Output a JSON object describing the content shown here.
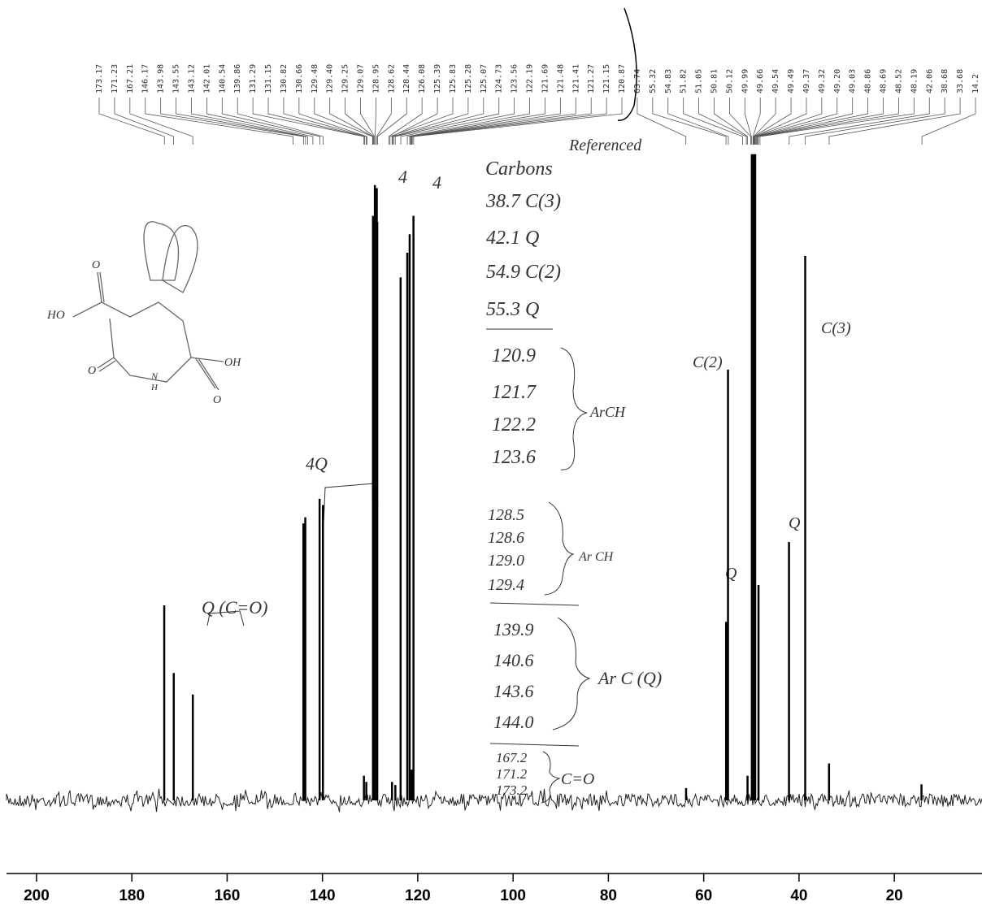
{
  "chart_data": {
    "type": "spectrum",
    "color": "#000000",
    "xlim": [
      206.3,
      1.6
    ],
    "ylim": [
      0,
      110
    ],
    "xticks": [
      200,
      180,
      160,
      140,
      120,
      100,
      80,
      60,
      40,
      20
    ],
    "x": [
      173.2,
      171.2,
      167.2,
      144.0,
      143.6,
      140.6,
      139.9,
      131.3,
      130.8,
      129.4,
      129.0,
      128.6,
      128.5,
      125.4,
      124.7,
      123.6,
      122.2,
      121.7,
      121.3,
      120.9,
      63.7,
      55.3,
      54.9,
      50.8,
      49.9,
      49.7,
      49.5,
      49.4,
      49.2,
      48.5,
      42.1,
      38.7,
      33.7,
      14.3
    ],
    "values": [
      31.7,
      20.7,
      17.2,
      45,
      46,
      49,
      48,
      4,
      3,
      95,
      100,
      99.5,
      94,
      3,
      2.5,
      85,
      89,
      92,
      5,
      95,
      2,
      29,
      70,
      4,
      105,
      105,
      105,
      105,
      105,
      35,
      42,
      88.5,
      6,
      2.6
    ],
    "peak_labels": [
      "173.17",
      "171.23",
      "167.21",
      "146.17",
      "143.98",
      "143.55",
      "143.12",
      "142.01",
      "140.54",
      "139.86",
      "131.29",
      "131.15",
      "130.82",
      "130.66",
      "129.48",
      "129.40",
      "129.25",
      "129.07",
      "128.95",
      "128.62",
      "128.44",
      "126.08",
      "125.39",
      "125.83",
      "125.28",
      "125.07",
      "124.73",
      "123.56",
      "122.19",
      "121.69",
      "121.48",
      "121.41",
      "121.27",
      "121.15",
      "120.87",
      "63.74",
      "55.32",
      "54.83",
      "51.82",
      "51.05",
      "50.81",
      "50.12",
      "49.99",
      "49.66",
      "49.54",
      "49.49",
      "49.37",
      "49.32",
      "49.20",
      "49.03",
      "48.86",
      "48.69",
      "48.52",
      "48.19",
      "42.06",
      "38.68",
      "33.68",
      "14.2"
    ],
    "annotations": [
      "Referenced",
      "Carbons",
      "38.7 C(3)",
      "42.1 Q",
      "54.9 C(2)",
      "55.3 Q",
      "120.9",
      "121.7",
      "122.2",
      "123.6",
      "ArCH",
      "128.5",
      "128.6",
      "129.0",
      "129.4",
      "Ar CH",
      "139.9",
      "140.6",
      "143.6",
      "144.0",
      "Ar C (Q)",
      "167.2",
      "171.2",
      "173.2",
      "C=O",
      "4",
      "4",
      "4Q",
      "Q (C=O)",
      "Q",
      "Q",
      "C(2)",
      "C(3)"
    ]
  },
  "structure": {
    "labels": [
      "HO",
      "O",
      "O",
      "N",
      "H",
      "OH",
      "O"
    ]
  }
}
